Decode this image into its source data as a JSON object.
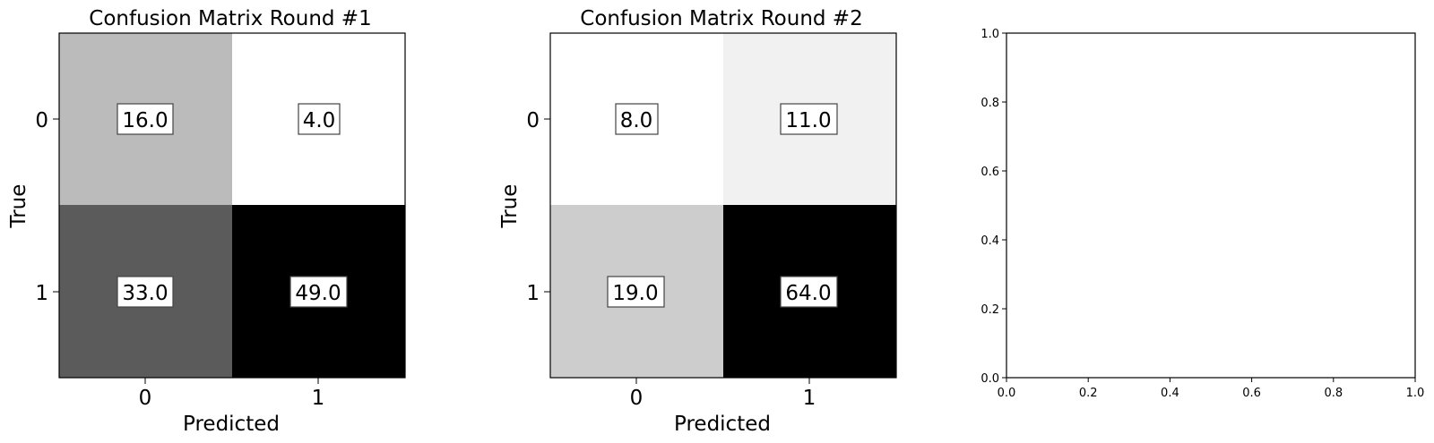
{
  "chart_data": [
    {
      "type": "heatmap",
      "title": "Confusion Matrix Round #1",
      "xlabel": "Predicted",
      "ylabel": "True",
      "x_ticks": [
        "0",
        "1"
      ],
      "y_ticks": [
        "0",
        "1"
      ],
      "values": [
        [
          16.0,
          4.0
        ],
        [
          33.0,
          49.0
        ]
      ],
      "cell_labels": [
        [
          "16.0",
          "4.0"
        ],
        [
          "33.0",
          "49.0"
        ]
      ],
      "colormap": "gray_r"
    },
    {
      "type": "heatmap",
      "title": "Confusion Matrix Round #2",
      "xlabel": "Predicted",
      "ylabel": "True",
      "x_ticks": [
        "0",
        "1"
      ],
      "y_ticks": [
        "0",
        "1"
      ],
      "values": [
        [
          8.0,
          11.0
        ],
        [
          19.0,
          64.0
        ]
      ],
      "cell_labels": [
        [
          "8.0",
          "11.0"
        ],
        [
          "19.0",
          "64.0"
        ]
      ],
      "colormap": "gray_r"
    },
    {
      "type": "line",
      "title": "",
      "xlabel": "",
      "ylabel": "",
      "xlim": [
        0.0,
        1.0
      ],
      "ylim": [
        0.0,
        1.0
      ],
      "x_ticks": [
        "0.0",
        "0.2",
        "0.4",
        "0.6",
        "0.8",
        "1.0"
      ],
      "y_ticks": [
        "0.0",
        "0.2",
        "0.4",
        "0.6",
        "0.8",
        "1.0"
      ],
      "series": []
    }
  ]
}
